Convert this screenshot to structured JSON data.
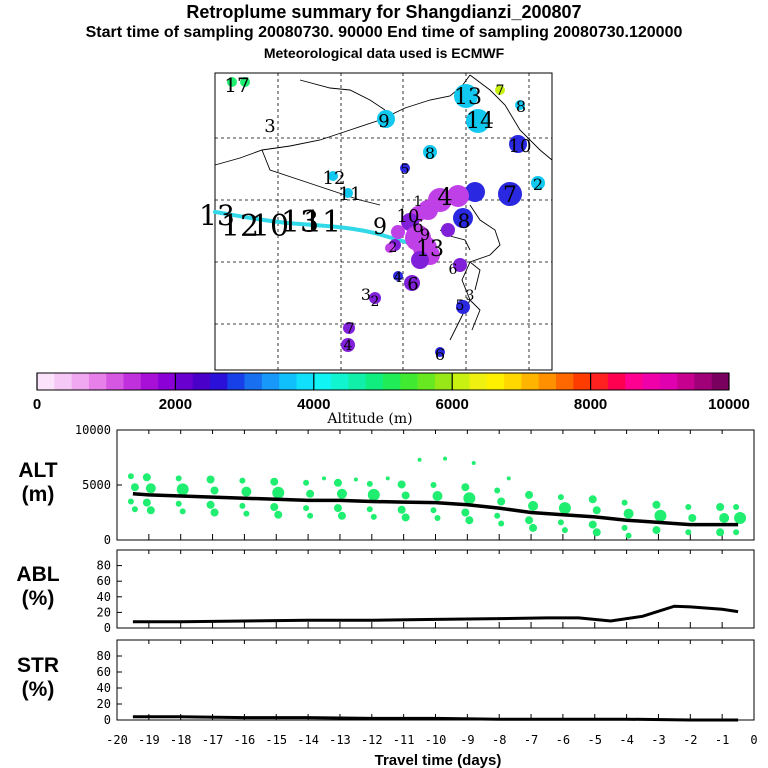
{
  "header": {
    "title": "Retroplume summary for Shangdianzi_200807",
    "sampling": "Start time of sampling 20080730. 90000     End time of sampling 20080730.120000",
    "met": "Meteorological data used is ECMWF"
  },
  "map_labels": [
    "17",
    "3",
    "9",
    "13",
    "14",
    "7",
    "8",
    "8",
    "10",
    "2",
    "12",
    "11",
    "5",
    "7",
    "13",
    "1",
    "12",
    "10",
    "13",
    "11",
    "10",
    "9",
    "8",
    "4",
    "6",
    "13",
    "2",
    "6",
    "3",
    "4",
    "5",
    "3",
    "2",
    "7",
    "4",
    "6",
    "6",
    "9"
  ],
  "colorbar": {
    "label": "Altitude (m)",
    "ticks": [
      "0",
      "2000",
      "4000",
      "6000",
      "8000",
      "10000"
    ],
    "range": [
      0,
      10000
    ],
    "colors": [
      "#fbe3fb",
      "#f6c8f6",
      "#f0a8f0",
      "#e880ea",
      "#d658e2",
      "#c030dc",
      "#a810d8",
      "#8a00d6",
      "#6a00d0",
      "#4a00c8",
      "#2a10d8",
      "#1840e8",
      "#1870f0",
      "#1898f8",
      "#10c0fc",
      "#10e0fc",
      "#10f4f4",
      "#10f4d0",
      "#10f0a8",
      "#10ee80",
      "#20ec58",
      "#40ea30",
      "#68e820",
      "#98e818",
      "#c8f010",
      "#f0f010",
      "#fff000",
      "#ffd800",
      "#ffb400",
      "#ff9000",
      "#ff6800",
      "#ff3c00",
      "#ff2020",
      "#ff0050",
      "#ff0090",
      "#f000a8",
      "#e000b0",
      "#c80090",
      "#a00078",
      "#7a0060"
    ]
  },
  "map_colors": {
    "track": "#30d8e8",
    "cyan": "#10c8f0",
    "blue": "#2a28e0",
    "magenta": "#c040e8",
    "purple": "#8020d8"
  },
  "chart_data": [
    {
      "type": "line",
      "panel": "altitude",
      "ylabel": "ALT (m)",
      "ylabel_line1": "ALT",
      "ylabel_line2": "(m)",
      "ylim": [
        0,
        10000
      ],
      "yticks": [
        "0",
        "5000",
        "10000"
      ],
      "yticks_values": [
        0,
        5000,
        10000
      ],
      "x": [
        -19.5,
        -19,
        -18,
        -17,
        -16,
        -15,
        -14,
        -13,
        -12,
        -11,
        -10,
        -9,
        -8,
        -7,
        -6,
        -5,
        -4,
        -3,
        -2,
        -1,
        -0.5
      ],
      "median_altitude": [
        4200,
        4100,
        4000,
        3900,
        3800,
        3700,
        3600,
        3600,
        3500,
        3450,
        3400,
        3200,
        2900,
        2500,
        2300,
        2100,
        1800,
        1600,
        1400,
        1400,
        1400
      ],
      "series_color": "#20ee70",
      "line_color": "#000000"
    },
    {
      "type": "line",
      "panel": "abl",
      "ylabel": "ABL (%)",
      "ylabel_line1": "ABL",
      "ylabel_line2": "(%)",
      "ylim": [
        0,
        100
      ],
      "yticks": [
        "0",
        "20",
        "40",
        "60",
        "80"
      ],
      "yticks_values": [
        0,
        20,
        40,
        60,
        80
      ],
      "x": [
        -19.5,
        -18,
        -16,
        -14,
        -12,
        -10,
        -8,
        -6.5,
        -5.5,
        -4.5,
        -3.5,
        -2.5,
        -2,
        -1,
        -0.5
      ],
      "values": [
        8,
        8,
        9,
        10,
        10,
        11,
        12,
        13,
        13,
        9,
        15,
        28,
        27,
        24,
        21
      ]
    },
    {
      "type": "line",
      "panel": "stratosphere",
      "ylabel": "STR (%)",
      "ylabel_line1": "STR",
      "ylabel_line2": "(%)",
      "ylim": [
        0,
        100
      ],
      "yticks": [
        "0",
        "20",
        "40",
        "60",
        "80"
      ],
      "yticks_values": [
        0,
        20,
        40,
        60,
        80
      ],
      "x": [
        -19.5,
        -18,
        -16,
        -14,
        -12,
        -10,
        -8,
        -6,
        -4,
        -2,
        -0.5
      ],
      "values": [
        4,
        4,
        3,
        3,
        2,
        2,
        1,
        1,
        1,
        0,
        0
      ],
      "xlabel": "Travel time (days)",
      "xlim": [
        -20,
        0
      ],
      "xticks": [
        "-20",
        "-19",
        "-18",
        "-17",
        "-16",
        "-15",
        "-14",
        "-13",
        "-12",
        "-11",
        "-10",
        "-9",
        "-8",
        "-7",
        "-6",
        "-5",
        "-4",
        "-3",
        "-2",
        "-1",
        "0"
      ],
      "xticks_values": [
        -20,
        -19,
        -18,
        -17,
        -16,
        -15,
        -14,
        -13,
        -12,
        -11,
        -10,
        -9,
        -8,
        -7,
        -6,
        -5,
        -4,
        -3,
        -2,
        -1,
        0
      ]
    }
  ]
}
